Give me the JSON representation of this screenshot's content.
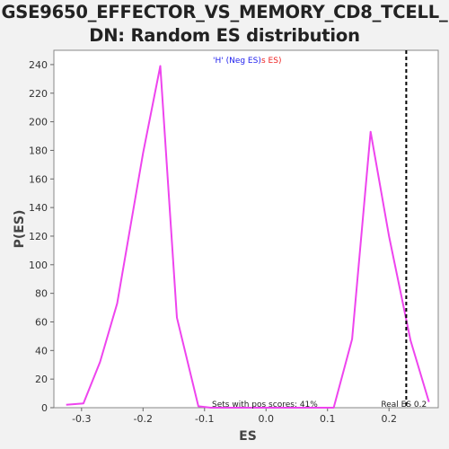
{
  "chart_data": {
    "type": "line",
    "title_line1": "GSE9650_EFFECTOR_VS_MEMORY_CD8_TCELL_",
    "title_line2": "DN: Random ES distribution",
    "xlabel": "ES",
    "ylabel": "P(ES)",
    "xlim": [
      -0.345,
      0.28
    ],
    "ylim": [
      0,
      250
    ],
    "xticks": [
      -0.3,
      -0.2,
      -0.1,
      0.0,
      0.1,
      0.2
    ],
    "xtick_labels": [
      "-0.3",
      "-0.2",
      "-0.1",
      "0.0",
      "0.1",
      "0.2"
    ],
    "yticks": [
      0,
      20,
      40,
      60,
      80,
      100,
      120,
      140,
      160,
      180,
      200,
      220,
      240
    ],
    "ytick_labels": [
      "0",
      "20",
      "40",
      "60",
      "80",
      "100",
      "120",
      "140",
      "160",
      "180",
      "200",
      "220",
      "240"
    ],
    "series": [
      {
        "color": "#ee44ee",
        "x": [
          -0.325,
          -0.297,
          -0.27,
          -0.242,
          -0.2,
          -0.172,
          -0.145,
          -0.11,
          -0.09,
          0.0,
          0.08,
          0.11,
          0.14,
          0.17,
          0.2,
          0.235,
          0.265
        ],
        "y": [
          2,
          3,
          32,
          73,
          178,
          239,
          63,
          1,
          0,
          0,
          0,
          0,
          48,
          193,
          120,
          47,
          4
        ]
      }
    ],
    "real_es": 0.228,
    "real_es_label": "Real ES 0.2",
    "pos_scores_label": "Sets with pos scores: 41%",
    "legend": {
      "part1": "'H' (Neg ES)",
      "part2": "s ES)",
      "color1": "#2222ee",
      "color2": "#ee2222"
    },
    "colors": {
      "background": "#f2f2f2",
      "plot_background": "#ffffff",
      "line": "#ee44ee",
      "real_es_line": "#000000"
    }
  }
}
